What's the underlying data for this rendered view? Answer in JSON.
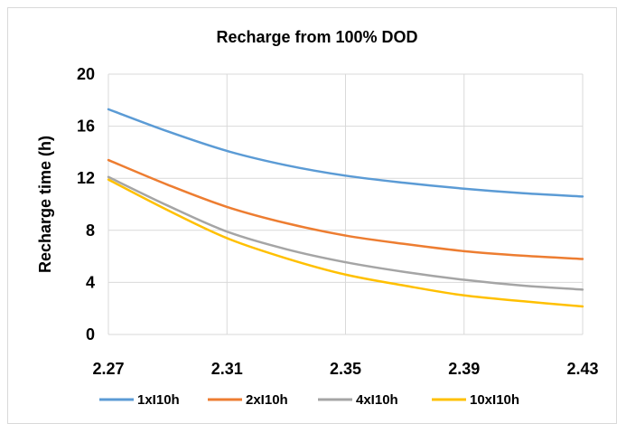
{
  "chart_data": {
    "type": "line",
    "title": "Recharge from 100% DOD",
    "xlabel": "",
    "ylabel": "Recharge time (h)",
    "xlim": [
      2.27,
      2.43
    ],
    "ylim": [
      0,
      20
    ],
    "x_ticks": [
      "2.27",
      "2.31",
      "2.35",
      "2.39",
      "2.43"
    ],
    "y_ticks": [
      "0",
      "4",
      "8",
      "12",
      "16",
      "20"
    ],
    "grid": true,
    "legend_position": "bottom",
    "x": [
      2.27,
      2.29,
      2.31,
      2.33,
      2.35,
      2.37,
      2.39,
      2.41,
      2.43
    ],
    "series": [
      {
        "name": "1xI10h",
        "color": "#5b9bd5",
        "values": [
          17.3,
          15.6,
          14.1,
          13.0,
          12.2,
          11.65,
          11.2,
          10.85,
          10.6
        ]
      },
      {
        "name": "2xI10h",
        "color": "#ed7d31",
        "values": [
          13.4,
          11.5,
          9.8,
          8.55,
          7.6,
          6.95,
          6.4,
          6.05,
          5.8
        ]
      },
      {
        "name": "4xI10h",
        "color": "#a5a5a5",
        "values": [
          12.1,
          9.9,
          7.9,
          6.55,
          5.55,
          4.8,
          4.2,
          3.75,
          3.45
        ]
      },
      {
        "name": "10xI10h",
        "color": "#ffc000",
        "values": [
          11.9,
          9.55,
          7.4,
          5.85,
          4.6,
          3.75,
          3.0,
          2.55,
          2.15
        ]
      }
    ]
  }
}
